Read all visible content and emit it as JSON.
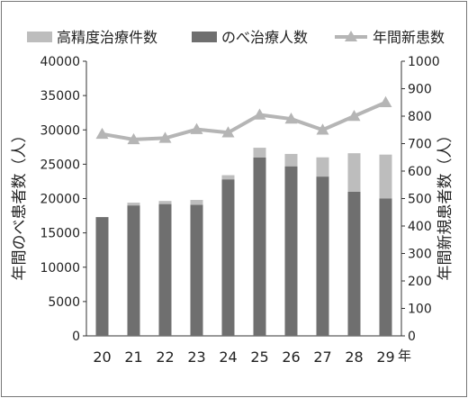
{
  "chart_data": {
    "type": "bar",
    "categories": [
      "20",
      "21",
      "22",
      "23",
      "24",
      "25",
      "26",
      "27",
      "28",
      "29"
    ],
    "x_unit_label": "年",
    "series": [
      {
        "name": "高精度治療件数",
        "kind": "stacked-bar",
        "axis": "left",
        "color": "#bdbdbd",
        "values": [
          0,
          400,
          450,
          700,
          600,
          1400,
          1800,
          2800,
          5600,
          6400
        ]
      },
      {
        "name": "のべ治療人数",
        "kind": "stacked-bar",
        "axis": "left",
        "color": "#6f6f6f",
        "values": [
          17300,
          19000,
          19200,
          19100,
          22800,
          26000,
          24700,
          23200,
          21000,
          20000
        ]
      },
      {
        "name": "年間新患数",
        "kind": "line-triangle-marker",
        "axis": "right",
        "color": "#b5b5b5",
        "values": [
          735,
          715,
          720,
          752,
          740,
          805,
          790,
          750,
          800,
          850
        ]
      }
    ],
    "left_axis": {
      "label": "年間のべ患者数（人）",
      "ylim": [
        0,
        40000
      ],
      "ticks": [
        "0",
        "5000",
        "10000",
        "15000",
        "20000",
        "25000",
        "30000",
        "35000",
        "40000"
      ]
    },
    "right_axis": {
      "label": "年間新規患者数（人）",
      "ylim": [
        0,
        1000
      ],
      "ticks": [
        "0",
        "100",
        "200",
        "300",
        "400",
        "500",
        "600",
        "700",
        "800",
        "900",
        "1000"
      ]
    },
    "legend_position": "top",
    "grid": false
  }
}
